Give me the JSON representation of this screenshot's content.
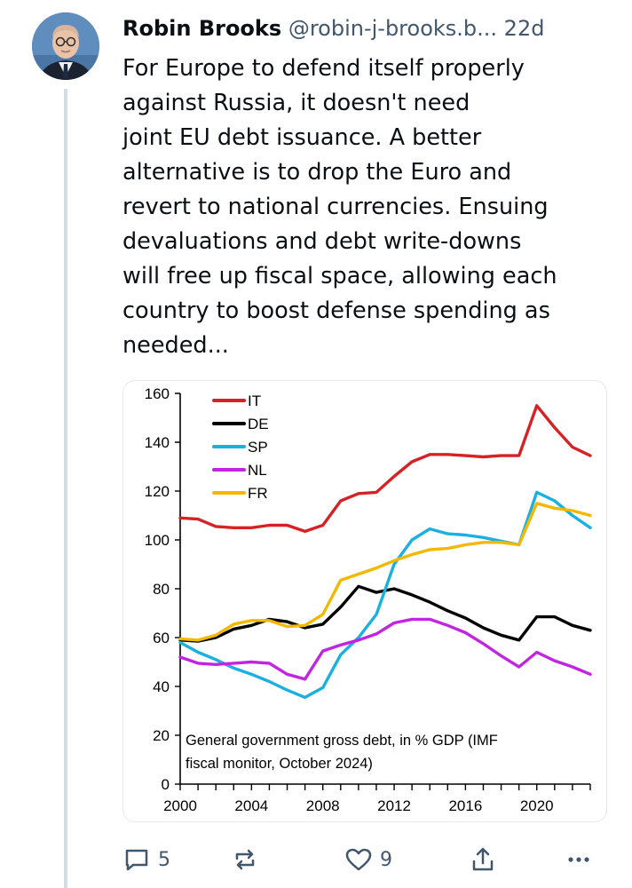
{
  "post": {
    "author_name": "Robin Brooks",
    "author_handle": "@robin-j-brooks.b...",
    "time_ago": "22d",
    "text": "For Europe to defend itself properly\nagainst Russia, it doesn't need\njoint EU debt issuance. A better\nalternative is to drop the Euro and\nrevert to national currencies. Ensuing\ndevaluations and debt write-downs\nwill free up fiscal space, allowing each\ncountry to boost defense spending as\nneeded..."
  },
  "actions": {
    "reply_count": "5",
    "like_count": "9"
  },
  "icons": {
    "reply": "reply-icon",
    "repost": "repost-icon",
    "like": "heart-icon",
    "share": "share-icon",
    "more": "more-icon"
  },
  "chart_data": {
    "type": "line",
    "title": "",
    "xlabel": "",
    "ylabel": "",
    "annotation_line1": "General government gross debt, in % GDP (IMF",
    "annotation_line2": "fiscal monitor, October 2024)",
    "xlim": [
      2000,
      2023
    ],
    "ylim": [
      0,
      160
    ],
    "x_ticks": [
      "2000",
      "2004",
      "2008",
      "2012",
      "2016",
      "2020"
    ],
    "y_ticks": [
      "0",
      "20",
      "40",
      "60",
      "80",
      "100",
      "120",
      "140",
      "160"
    ],
    "legend_position": "top-left",
    "x": [
      2000,
      2001,
      2002,
      2003,
      2004,
      2005,
      2006,
      2007,
      2008,
      2009,
      2010,
      2011,
      2012,
      2013,
      2014,
      2015,
      2016,
      2017,
      2018,
      2019,
      2020,
      2021,
      2022,
      2023
    ],
    "series": [
      {
        "name": "IT",
        "color": "#d62224",
        "values": [
          109,
          108.5,
          105.5,
          105,
          105,
          106,
          106,
          103.5,
          106,
          116,
          119,
          119.5,
          126,
          132,
          135,
          135,
          134.5,
          134,
          134.5,
          134.5,
          155,
          146,
          138,
          134.5
        ]
      },
      {
        "name": "DE",
        "color": "#000000",
        "values": [
          59,
          58.5,
          60,
          63.5,
          65,
          67.5,
          66.5,
          64,
          65.5,
          72.5,
          81,
          78.5,
          80,
          77.5,
          74.5,
          71,
          68,
          64,
          61,
          59,
          68.5,
          68.5,
          65,
          63
        ]
      },
      {
        "name": "SP",
        "color": "#1ab0e0",
        "values": [
          58,
          54,
          51,
          47.5,
          45,
          42,
          38.5,
          35.5,
          39.5,
          53,
          60,
          69.5,
          90,
          100,
          104.5,
          102.5,
          102,
          101,
          99.5,
          98,
          119.5,
          116,
          110,
          105
        ]
      },
      {
        "name": "NL",
        "color": "#c125e0",
        "values": [
          52,
          49.5,
          49,
          49.5,
          50,
          49.5,
          45,
          43,
          54.5,
          57,
          59,
          61.5,
          66,
          67.5,
          67.5,
          65,
          62,
          57.5,
          52.5,
          48,
          54,
          50.5,
          48,
          45
        ]
      },
      {
        "name": "FR",
        "color": "#f5b800",
        "values": [
          59.5,
          59,
          61,
          65.5,
          67,
          67,
          64.5,
          65,
          69.5,
          83.5,
          86,
          88.5,
          91.5,
          94,
          96,
          96.5,
          98,
          99,
          99,
          98,
          115,
          113,
          112,
          110
        ]
      }
    ]
  }
}
